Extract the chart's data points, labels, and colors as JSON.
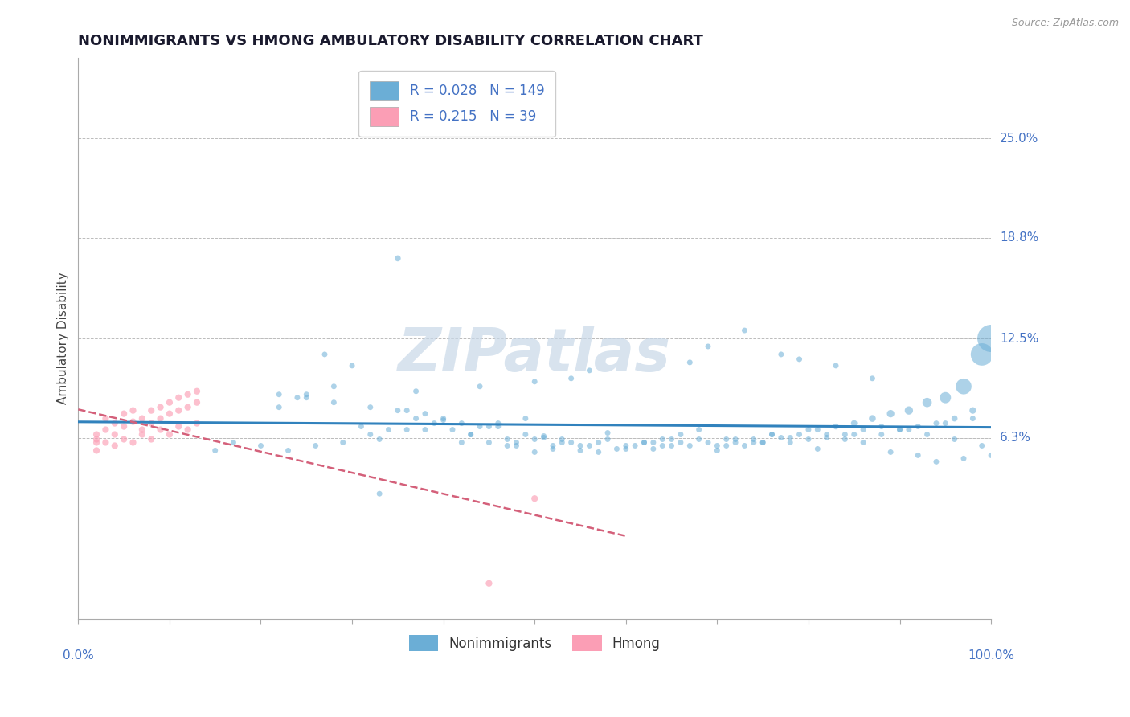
{
  "title": "NONIMMIGRANTS VS HMONG AMBULATORY DISABILITY CORRELATION CHART",
  "source": "Source: ZipAtlas.com",
  "ylabel": "Ambulatory Disability",
  "ytick_labels": [
    "6.3%",
    "12.5%",
    "18.8%",
    "25.0%"
  ],
  "ytick_values": [
    0.063,
    0.125,
    0.188,
    0.25
  ],
  "xlim": [
    0.0,
    1.0
  ],
  "ylim": [
    -0.05,
    0.3
  ],
  "legend_blue_r": "0.028",
  "legend_blue_n": "149",
  "legend_pink_r": "0.215",
  "legend_pink_n": "39",
  "blue_color": "#6baed6",
  "pink_color": "#fb9eb5",
  "regression_blue_color": "#3182bd",
  "regression_pink_color": "#d4607a",
  "title_color": "#1a1a2e",
  "label_color": "#4472c4",
  "watermark_color": "#c8d8e8",
  "blue_scatter_x": [
    0.35,
    0.27,
    0.3,
    0.28,
    0.25,
    0.24,
    0.22,
    0.4,
    0.45,
    0.38,
    0.32,
    0.33,
    0.42,
    0.48,
    0.52,
    0.5,
    0.55,
    0.53,
    0.47,
    0.44,
    0.41,
    0.46,
    0.49,
    0.51,
    0.54,
    0.56,
    0.58,
    0.6,
    0.62,
    0.64,
    0.66,
    0.68,
    0.7,
    0.72,
    0.74,
    0.76,
    0.78,
    0.8,
    0.82,
    0.84,
    0.86,
    0.88,
    0.9,
    0.92,
    0.94,
    0.96,
    0.98,
    1.0,
    0.99,
    0.97,
    0.95,
    0.93,
    0.91,
    0.89,
    0.87,
    0.85,
    0.83,
    0.81,
    0.79,
    0.77,
    0.75,
    0.73,
    0.71,
    0.69,
    0.67,
    0.65,
    0.63,
    0.61,
    0.59,
    0.57,
    0.36,
    0.37,
    0.39,
    0.43,
    0.29,
    0.26,
    0.23,
    0.34,
    0.31,
    0.53,
    0.55,
    0.48,
    0.7,
    0.65,
    0.75,
    0.8,
    0.85,
    0.9,
    0.95,
    0.98,
    0.6,
    0.62,
    0.64,
    0.66,
    0.68,
    0.72,
    0.74,
    0.76,
    0.88,
    0.86,
    0.84,
    0.82,
    0.78,
    0.71,
    0.63,
    0.57,
    0.52,
    0.49,
    0.46,
    0.42,
    0.4,
    0.38,
    0.35,
    0.32,
    0.28,
    0.25,
    0.22,
    0.37,
    0.44,
    0.5,
    0.54,
    0.56,
    0.67,
    0.69,
    0.73,
    0.77,
    0.79,
    0.83,
    0.87,
    0.91,
    0.93,
    0.96,
    0.99,
    1.0,
    0.97,
    0.94,
    0.92,
    0.89,
    0.81,
    0.45,
    0.47,
    0.51,
    0.58,
    0.33,
    0.2,
    0.17,
    0.15,
    0.5,
    0.43,
    0.36
  ],
  "blue_scatter_y": [
    0.175,
    0.115,
    0.108,
    0.095,
    0.09,
    0.088,
    0.082,
    0.074,
    0.07,
    0.068,
    0.065,
    0.062,
    0.06,
    0.058,
    0.056,
    0.054,
    0.055,
    0.06,
    0.058,
    0.07,
    0.068,
    0.072,
    0.065,
    0.063,
    0.06,
    0.058,
    0.062,
    0.056,
    0.06,
    0.058,
    0.06,
    0.062,
    0.058,
    0.06,
    0.062,
    0.065,
    0.063,
    0.068,
    0.065,
    0.062,
    0.06,
    0.065,
    0.068,
    0.07,
    0.072,
    0.075,
    0.08,
    0.125,
    0.115,
    0.095,
    0.088,
    0.085,
    0.08,
    0.078,
    0.075,
    0.072,
    0.07,
    0.068,
    0.065,
    0.063,
    0.06,
    0.058,
    0.062,
    0.06,
    0.058,
    0.062,
    0.06,
    0.058,
    0.056,
    0.054,
    0.08,
    0.075,
    0.072,
    0.065,
    0.06,
    0.058,
    0.055,
    0.068,
    0.07,
    0.062,
    0.058,
    0.06,
    0.055,
    0.058,
    0.06,
    0.062,
    0.065,
    0.068,
    0.072,
    0.075,
    0.058,
    0.06,
    0.062,
    0.065,
    0.068,
    0.062,
    0.06,
    0.065,
    0.07,
    0.068,
    0.065,
    0.063,
    0.06,
    0.058,
    0.056,
    0.06,
    0.058,
    0.075,
    0.07,
    0.072,
    0.075,
    0.078,
    0.08,
    0.082,
    0.085,
    0.088,
    0.09,
    0.092,
    0.095,
    0.098,
    0.1,
    0.105,
    0.11,
    0.12,
    0.13,
    0.115,
    0.112,
    0.108,
    0.1,
    0.068,
    0.065,
    0.062,
    0.058,
    0.052,
    0.05,
    0.048,
    0.052,
    0.054,
    0.056,
    0.06,
    0.062,
    0.064,
    0.066,
    0.028,
    0.058,
    0.06,
    0.055,
    0.062,
    0.065,
    0.068
  ],
  "blue_scatter_sizes": [
    30,
    25,
    25,
    25,
    25,
    25,
    25,
    25,
    25,
    25,
    25,
    25,
    25,
    25,
    25,
    25,
    25,
    25,
    25,
    25,
    25,
    25,
    25,
    25,
    25,
    25,
    25,
    25,
    25,
    25,
    25,
    25,
    25,
    25,
    25,
    25,
    25,
    25,
    25,
    25,
    25,
    25,
    25,
    25,
    25,
    30,
    35,
    600,
    400,
    200,
    100,
    70,
    55,
    45,
    38,
    32,
    28,
    25,
    25,
    25,
    25,
    25,
    25,
    25,
    25,
    25,
    25,
    25,
    25,
    25,
    25,
    25,
    25,
    25,
    25,
    25,
    25,
    25,
    25,
    25,
    25,
    25,
    25,
    25,
    25,
    25,
    25,
    25,
    25,
    25,
    25,
    25,
    25,
    25,
    25,
    25,
    25,
    25,
    25,
    25,
    25,
    25,
    25,
    25,
    25,
    25,
    25,
    25,
    25,
    25,
    25,
    25,
    25,
    25,
    25,
    25,
    25,
    25,
    25,
    25,
    25,
    25,
    25,
    25,
    25,
    25,
    25,
    25,
    25,
    25,
    25,
    25,
    25,
    25,
    25,
    25,
    25,
    25,
    25,
    25,
    25,
    25,
    25,
    25,
    25,
    25,
    25,
    25,
    25,
    25
  ],
  "pink_scatter_x": [
    0.02,
    0.02,
    0.03,
    0.03,
    0.04,
    0.04,
    0.05,
    0.05,
    0.06,
    0.06,
    0.07,
    0.07,
    0.08,
    0.08,
    0.09,
    0.09,
    0.1,
    0.1,
    0.11,
    0.11,
    0.12,
    0.12,
    0.13,
    0.13,
    0.02,
    0.02,
    0.03,
    0.04,
    0.05,
    0.06,
    0.07,
    0.08,
    0.09,
    0.1,
    0.11,
    0.12,
    0.13,
    0.5,
    0.45
  ],
  "pink_scatter_y": [
    0.065,
    0.06,
    0.075,
    0.068,
    0.072,
    0.065,
    0.078,
    0.07,
    0.08,
    0.073,
    0.075,
    0.068,
    0.08,
    0.072,
    0.082,
    0.075,
    0.085,
    0.078,
    0.088,
    0.08,
    0.09,
    0.082,
    0.092,
    0.085,
    0.062,
    0.055,
    0.06,
    0.058,
    0.062,
    0.06,
    0.065,
    0.062,
    0.068,
    0.065,
    0.07,
    0.068,
    0.072,
    0.025,
    -0.028
  ],
  "pink_scatter_sizes": [
    35,
    35,
    35,
    35,
    35,
    35,
    35,
    35,
    35,
    35,
    35,
    35,
    35,
    35,
    35,
    35,
    35,
    35,
    35,
    35,
    35,
    35,
    35,
    35,
    35,
    35,
    35,
    35,
    35,
    35,
    35,
    35,
    35,
    35,
    35,
    35,
    35,
    35,
    35
  ]
}
